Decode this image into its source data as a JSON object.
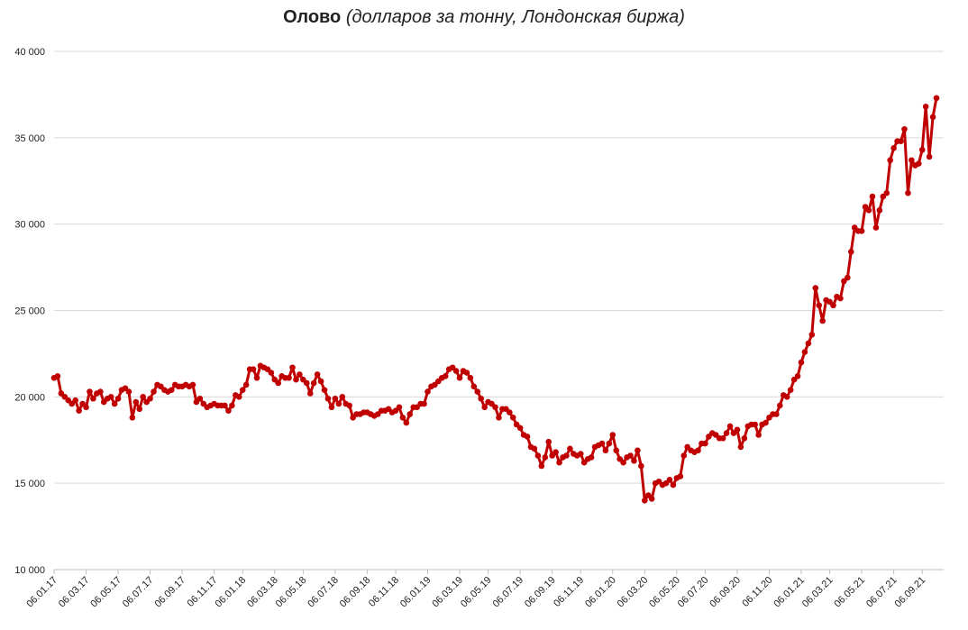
{
  "chart_data": {
    "type": "line",
    "title": "Олово",
    "subtitle": "(долларов за тонну, Лондонская биржа)",
    "color": "#c00000",
    "grid": true,
    "ylim": [
      10000,
      40000
    ],
    "yticks": [
      {
        "value": 10000,
        "label": "10 000"
      },
      {
        "value": 15000,
        "label": "15 000"
      },
      {
        "value": 20000,
        "label": "20 000"
      },
      {
        "value": 25000,
        "label": "25 000"
      },
      {
        "value": 30000,
        "label": "30 000"
      },
      {
        "value": 35000,
        "label": "35 000"
      },
      {
        "value": 40000,
        "label": "40 000"
      }
    ],
    "categories": [
      "06.01.17",
      null,
      null,
      null,
      null,
      null,
      null,
      null,
      null,
      "06.03.17",
      null,
      null,
      null,
      null,
      null,
      null,
      null,
      null,
      "06.05.17",
      null,
      null,
      null,
      null,
      null,
      null,
      null,
      null,
      "06.07.17",
      null,
      null,
      null,
      null,
      null,
      null,
      null,
      null,
      "06.09.17",
      null,
      null,
      null,
      null,
      null,
      null,
      null,
      null,
      "06.11.17",
      null,
      null,
      null,
      null,
      null,
      null,
      null,
      "06.01.18",
      null,
      null,
      null,
      null,
      null,
      null,
      null,
      null,
      "06.03.18",
      null,
      null,
      null,
      null,
      null,
      null,
      null,
      "06.05.18",
      null,
      null,
      null,
      null,
      null,
      null,
      null,
      null,
      "06.07.18",
      null,
      null,
      null,
      null,
      null,
      null,
      null,
      null,
      "06.09.18",
      null,
      null,
      null,
      null,
      null,
      null,
      null,
      "06.11.18",
      null,
      null,
      null,
      null,
      null,
      null,
      null,
      null,
      "06.01.19",
      null,
      null,
      null,
      null,
      null,
      null,
      null,
      null,
      "06.03.19",
      null,
      null,
      null,
      null,
      null,
      null,
      null,
      "06.05.19",
      null,
      null,
      null,
      null,
      null,
      null,
      null,
      null,
      "06.07.19",
      null,
      null,
      null,
      null,
      null,
      null,
      null,
      null,
      "06.09.19",
      null,
      null,
      null,
      null,
      null,
      null,
      null,
      "06.11.19",
      null,
      null,
      null,
      null,
      null,
      null,
      null,
      null,
      "06.01.20",
      null,
      null,
      null,
      null,
      null,
      null,
      null,
      null,
      "06.03.20",
      null,
      null,
      null,
      null,
      null,
      null,
      null,
      null,
      "06.05.20",
      null,
      null,
      null,
      null,
      null,
      null,
      null,
      "06.07.20",
      null,
      null,
      null,
      null,
      null,
      null,
      null,
      null,
      "06.09.20",
      null,
      null,
      null,
      null,
      null,
      null,
      null,
      null,
      "06.11.20",
      null,
      null,
      null,
      null,
      null,
      null,
      null,
      null,
      "06.01.21",
      null,
      null,
      null,
      null,
      null,
      null,
      null,
      "06.03.21",
      null,
      null,
      null,
      null,
      null,
      null,
      null,
      null,
      "06.05.21",
      null,
      null,
      null,
      null,
      null,
      null,
      null,
      null,
      "06.07.21",
      null,
      null,
      null,
      null,
      null,
      null,
      null,
      "06.09.21",
      null,
      null,
      null,
      null
    ],
    "values": [
      21100,
      21200,
      20200,
      20000,
      19800,
      19600,
      19800,
      19200,
      19600,
      19400,
      20300,
      19900,
      20200,
      20300,
      19700,
      19900,
      20000,
      19600,
      19900,
      20400,
      20500,
      20300,
      18800,
      19700,
      19300,
      20000,
      19700,
      19900,
      20300,
      20700,
      20600,
      20400,
      20300,
      20400,
      20700,
      20600,
      20600,
      20700,
      20600,
      20700,
      19700,
      19900,
      19600,
      19400,
      19500,
      19600,
      19500,
      19500,
      19500,
      19200,
      19500,
      20100,
      20000,
      20400,
      20700,
      21600,
      21600,
      21100,
      21800,
      21700,
      21600,
      21400,
      21000,
      20800,
      21200,
      21100,
      21100,
      21700,
      21000,
      21300,
      21000,
      20800,
      20200,
      20800,
      21300,
      20900,
      20400,
      19900,
      19400,
      19900,
      19600,
      20000,
      19600,
      19500,
      18800,
      19000,
      19000,
      19100,
      19100,
      19000,
      18900,
      19000,
      19200,
      19200,
      19300,
      19100,
      19200,
      19400,
      18800,
      18500,
      19000,
      19400,
      19400,
      19600,
      19600,
      20300,
      20600,
      20700,
      20900,
      21100,
      21200,
      21600,
      21700,
      21500,
      21100,
      21500,
      21400,
      21100,
      20600,
      20300,
      19900,
      19400,
      19700,
      19600,
      19400,
      18800,
      19300,
      19300,
      19100,
      18800,
      18400,
      18200,
      17800,
      17700,
      17100,
      17000,
      16600,
      16000,
      16500,
      17400,
      16600,
      16800,
      16200,
      16500,
      16600,
      17000,
      16700,
      16600,
      16700,
      16200,
      16400,
      16500,
      17100,
      17200,
      17300,
      16900,
      17300,
      17800,
      16900,
      16400,
      16200,
      16500,
      16600,
      16300,
      16900,
      16000,
      14000,
      14300,
      14100,
      15000,
      15100,
      14900,
      15000,
      15200,
      14900,
      15300,
      15400,
      16600,
      17100,
      16900,
      16800,
      16900,
      17300,
      17300,
      17700,
      17900,
      17800,
      17600,
      17600,
      17900,
      18300,
      17900,
      18100,
      17100,
      17600,
      18300,
      18400,
      18400,
      17800,
      18400,
      18500,
      18800,
      19000,
      19000,
      19500,
      20100,
      20000,
      20400,
      21000,
      21200,
      22000,
      22600,
      23100,
      23600,
      26300,
      25300,
      24400,
      25600,
      25500,
      25300,
      25800,
      25700,
      26700,
      26900,
      28400,
      29800,
      29600,
      29600,
      31000,
      30800,
      31600,
      29800,
      30800,
      31600,
      31800,
      33700,
      34400,
      34800,
      34800,
      35500,
      31800,
      33700,
      33400,
      33500,
      34300,
      36800,
      33900,
      36200,
      37300
    ]
  }
}
